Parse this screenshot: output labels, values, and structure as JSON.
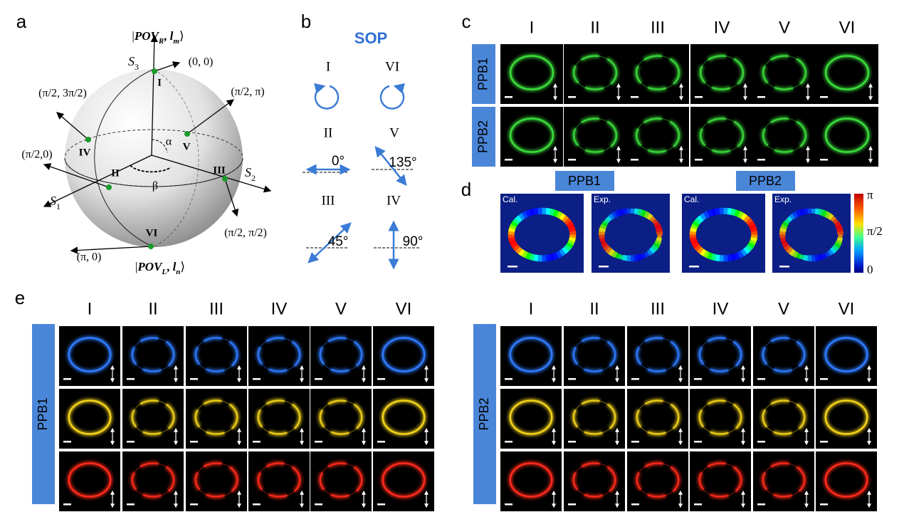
{
  "panel_labels": [
    "a",
    "b",
    "c",
    "d",
    "e"
  ],
  "poincare_sphere": {
    "north_state": [
      "|",
      "POV",
      "R",
      ", ",
      "l",
      "m",
      "⟩"
    ],
    "south_state": [
      "|",
      "POV",
      "L",
      ", ",
      "l",
      "n",
      "⟩"
    ],
    "s1": [
      "S",
      "1"
    ],
    "s2": [
      "S",
      "2"
    ],
    "s3": [
      "S",
      "3"
    ],
    "points": [
      {
        "label": "I",
        "coord": "(0, 0)"
      },
      {
        "label": "II",
        "coord": "(π/2,0)"
      },
      {
        "label": "III",
        "coord": "(π/2, π/2)"
      },
      {
        "label": "IV",
        "coord": "(π/2, 3π/2)"
      },
      {
        "label": "V",
        "coord": "(π/2, π)"
      },
      {
        "label": "VI",
        "coord": "(π, 0)"
      }
    ],
    "angles": [
      "α",
      "β"
    ]
  },
  "sop": {
    "title": "SOP",
    "states": [
      {
        "label": "I"
      },
      {
        "label": "VI"
      },
      {
        "label": "II",
        "angle": "0°"
      },
      {
        "label": "V",
        "angle": "135°"
      },
      {
        "label": "III",
        "angle": "45°"
      },
      {
        "label": "IV",
        "angle": "90°"
      }
    ]
  },
  "intensity_maps": {
    "columns": [
      "I",
      "II",
      "III",
      "IV",
      "V",
      "VI"
    ],
    "rows": [
      "PPB1",
      "PPB2"
    ]
  },
  "phase_maps": {
    "groups": [
      {
        "name": "PPB1",
        "images": [
          "Cal.",
          "Exp."
        ]
      },
      {
        "name": "PPB2",
        "images": [
          "Cal.",
          "Exp."
        ]
      }
    ],
    "colorbar_ticks": [
      "π",
      "π/2",
      "0"
    ]
  },
  "wavelength_maps": [
    {
      "sample": "PPB1",
      "columns": [
        "I",
        "II",
        "III",
        "IV",
        "V",
        "VI"
      ]
    },
    {
      "sample": "PPB2",
      "columns": [
        "I",
        "II",
        "III",
        "IV",
        "V",
        "VI"
      ]
    }
  ]
}
